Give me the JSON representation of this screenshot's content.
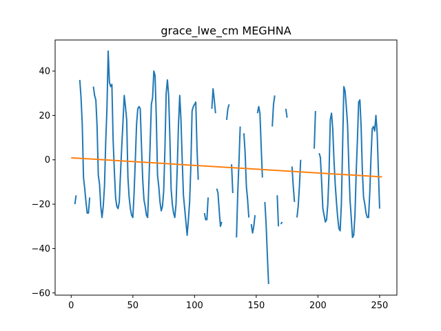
{
  "chart_data": {
    "type": "line",
    "title": "grace_lwe_cm MEGHNA",
    "xlabel": "",
    "ylabel": "",
    "xlim": [
      -13,
      264
    ],
    "ylim": [
      -61,
      54
    ],
    "xticks": [
      0,
      50,
      100,
      150,
      200,
      250
    ],
    "yticks": [
      -60,
      -40,
      -20,
      0,
      20,
      40
    ],
    "xtick_labels": [
      "0",
      "50",
      "100",
      "150",
      "200",
      "250"
    ],
    "ytick_labels": [
      "−60",
      "−40",
      "−20",
      "0",
      "20",
      "40"
    ],
    "grid": false,
    "colors": {
      "series_1": "#1f77b4",
      "trend": "#ff7f0e"
    },
    "series": [
      {
        "color": "#1f77b4",
        "segments": [
          [
            [
              3,
              -20
            ],
            [
              4,
              -16
            ]
          ],
          [
            [
              7,
              36
            ],
            [
              8,
              28
            ],
            [
              9,
              16
            ],
            [
              10,
              -8
            ],
            [
              11,
              -13
            ],
            [
              12,
              -19
            ],
            [
              13,
              -24
            ],
            [
              14,
              -24
            ],
            [
              15,
              -17
            ]
          ],
          [
            [
              18,
              33
            ],
            [
              19,
              29
            ],
            [
              20,
              27
            ],
            [
              21,
              15
            ],
            [
              22,
              -7
            ],
            [
              23,
              -11
            ],
            [
              24,
              -21
            ],
            [
              25,
              -26
            ],
            [
              26,
              -21
            ],
            [
              27,
              -12
            ],
            [
              28,
              8
            ],
            [
              29,
              23
            ],
            [
              30,
              49
            ],
            [
              31,
              35
            ],
            [
              32,
              33
            ],
            [
              33,
              34
            ],
            [
              34,
              9
            ],
            [
              35,
              -5
            ],
            [
              36,
              -17
            ],
            [
              37,
              -21
            ],
            [
              38,
              -22
            ],
            [
              39,
              -19
            ],
            [
              40,
              -6
            ],
            [
              41,
              6
            ],
            [
              42,
              17
            ],
            [
              43,
              29
            ],
            [
              44,
              24
            ],
            [
              45,
              18
            ],
            [
              46,
              -8
            ],
            [
              47,
              -17
            ],
            [
              48,
              -22
            ],
            [
              49,
              -25
            ],
            [
              50,
              -26
            ],
            [
              51,
              -15
            ],
            [
              52,
              0
            ],
            [
              53,
              16
            ],
            [
              54,
              23
            ],
            [
              55,
              24
            ],
            [
              56,
              23
            ],
            [
              57,
              6
            ],
            [
              58,
              -9
            ],
            [
              59,
              -18
            ],
            [
              60,
              -21
            ],
            [
              61,
              -25
            ],
            [
              62,
              -26
            ],
            [
              63,
              -10
            ],
            [
              64,
              7
            ],
            [
              65,
              25
            ],
            [
              66,
              28
            ],
            [
              67,
              40
            ],
            [
              68,
              38
            ],
            [
              69,
              19
            ],
            [
              70,
              -7
            ],
            [
              71,
              -12
            ],
            [
              72,
              -19
            ],
            [
              73,
              -23
            ],
            [
              74,
              -21
            ],
            [
              75,
              -14
            ],
            [
              76,
              5
            ],
            [
              77,
              30
            ],
            [
              78,
              36
            ],
            [
              79,
              29
            ],
            [
              80,
              10
            ],
            [
              81,
              -13
            ],
            [
              82,
              -20
            ],
            [
              83,
              -24
            ],
            [
              84,
              -26
            ],
            [
              85,
              -20
            ],
            [
              86,
              -3
            ],
            [
              87,
              16
            ],
            [
              88,
              29
            ],
            [
              89,
              18
            ],
            [
              90,
              0
            ],
            [
              91,
              -16
            ],
            [
              92,
              -22
            ],
            [
              93,
              -28
            ],
            [
              94,
              -34
            ],
            [
              95,
              -27
            ],
            [
              96,
              -19
            ],
            [
              97,
              -3
            ],
            [
              98,
              22
            ],
            [
              99,
              24
            ],
            [
              100,
              25
            ],
            [
              101,
              26
            ],
            [
              102,
              5
            ],
            [
              103,
              -9
            ]
          ],
          [
            [
              108,
              -24
            ],
            [
              109,
              -27
            ],
            [
              110,
              -27
            ],
            [
              111,
              -17
            ]
          ],
          [
            [
              114,
              23
            ],
            [
              115,
              32
            ],
            [
              116,
              27
            ],
            [
              117,
              21
            ]
          ],
          [
            [
              118,
              -13
            ],
            [
              119,
              -15
            ],
            [
              120,
              -23
            ],
            [
              121,
              -30
            ],
            [
              122,
              -28
            ]
          ],
          [
            [
              126,
              18
            ],
            [
              127,
              23
            ],
            [
              128,
              25
            ]
          ],
          [
            [
              130,
              -2
            ],
            [
              131,
              -15
            ]
          ],
          [
            [
              134,
              -35
            ],
            [
              135,
              -15
            ],
            [
              136,
              -1
            ],
            [
              137,
              15
            ]
          ],
          [
            [
              140,
              12
            ],
            [
              141,
              3
            ],
            [
              142,
              -12
            ],
            [
              143,
              -18
            ],
            [
              144,
              -26
            ]
          ],
          [
            [
              146,
              -29
            ],
            [
              147,
              -33
            ],
            [
              148,
              -30
            ],
            [
              149,
              -25
            ]
          ],
          [
            [
              151,
              21
            ],
            [
              152,
              24
            ],
            [
              153,
              21
            ],
            [
              154,
              6
            ],
            [
              155,
              -8
            ]
          ],
          [
            [
              157,
              -19
            ],
            [
              158,
              -29
            ],
            [
              159,
              -43
            ],
            [
              160,
              -56
            ]
          ],
          [
            [
              163,
              15
            ],
            [
              164,
              25
            ],
            [
              165,
              29
            ]
          ],
          [
            [
              167,
              -16
            ],
            [
              168,
              -30
            ]
          ],
          [
            [
              170,
              -29
            ],
            [
              171,
              -28
            ]
          ],
          [
            [
              174,
              23
            ],
            [
              175,
              19
            ]
          ],
          [
            [
              179,
              -3
            ],
            [
              180,
              -12
            ],
            [
              181,
              -19
            ]
          ],
          [
            [
              183,
              -26
            ],
            [
              184,
              -21
            ],
            [
              185,
              -12
            ],
            [
              186,
              0
            ]
          ],
          [
            [
              197,
              5
            ],
            [
              198,
              22
            ]
          ],
          [
            [
              201,
              3
            ],
            [
              202,
              1
            ],
            [
              203,
              -10
            ],
            [
              204,
              -22
            ],
            [
              205,
              -25
            ],
            [
              206,
              -28
            ],
            [
              207,
              -27
            ],
            [
              208,
              -20
            ],
            [
              209,
              -6
            ],
            [
              210,
              18
            ],
            [
              211,
              21
            ],
            [
              212,
              14
            ],
            [
              213,
              0
            ],
            [
              214,
              -11
            ],
            [
              215,
              -19
            ],
            [
              216,
              -26
            ],
            [
              217,
              -31
            ],
            [
              218,
              -32
            ],
            [
              219,
              -20
            ],
            [
              220,
              6
            ],
            [
              221,
              33
            ],
            [
              222,
              31
            ],
            [
              223,
              24
            ],
            [
              224,
              16
            ],
            [
              225,
              -2
            ],
            [
              226,
              -18
            ],
            [
              227,
              -26
            ],
            [
              228,
              -35
            ],
            [
              229,
              -34
            ],
            [
              230,
              -25
            ],
            [
              231,
              -6
            ],
            [
              232,
              9
            ],
            [
              233,
              26
            ],
            [
              234,
              27
            ],
            [
              235,
              15
            ],
            [
              236,
              -5
            ],
            [
              237,
              -17
            ],
            [
              238,
              -20
            ],
            [
              239,
              -24
            ],
            [
              240,
              -26
            ],
            [
              241,
              -26
            ],
            [
              242,
              -15
            ],
            [
              243,
              1
            ],
            [
              244,
              14
            ],
            [
              245,
              15
            ],
            [
              246,
              13
            ],
            [
              247,
              20
            ],
            [
              248,
              12
            ],
            [
              249,
              -5
            ],
            [
              250,
              -22
            ]
          ]
        ]
      },
      {
        "color": "#ff7f0e",
        "segments": [
          [
            [
              0,
              0.9
            ],
            [
              252,
              -7.7
            ]
          ]
        ]
      }
    ]
  }
}
